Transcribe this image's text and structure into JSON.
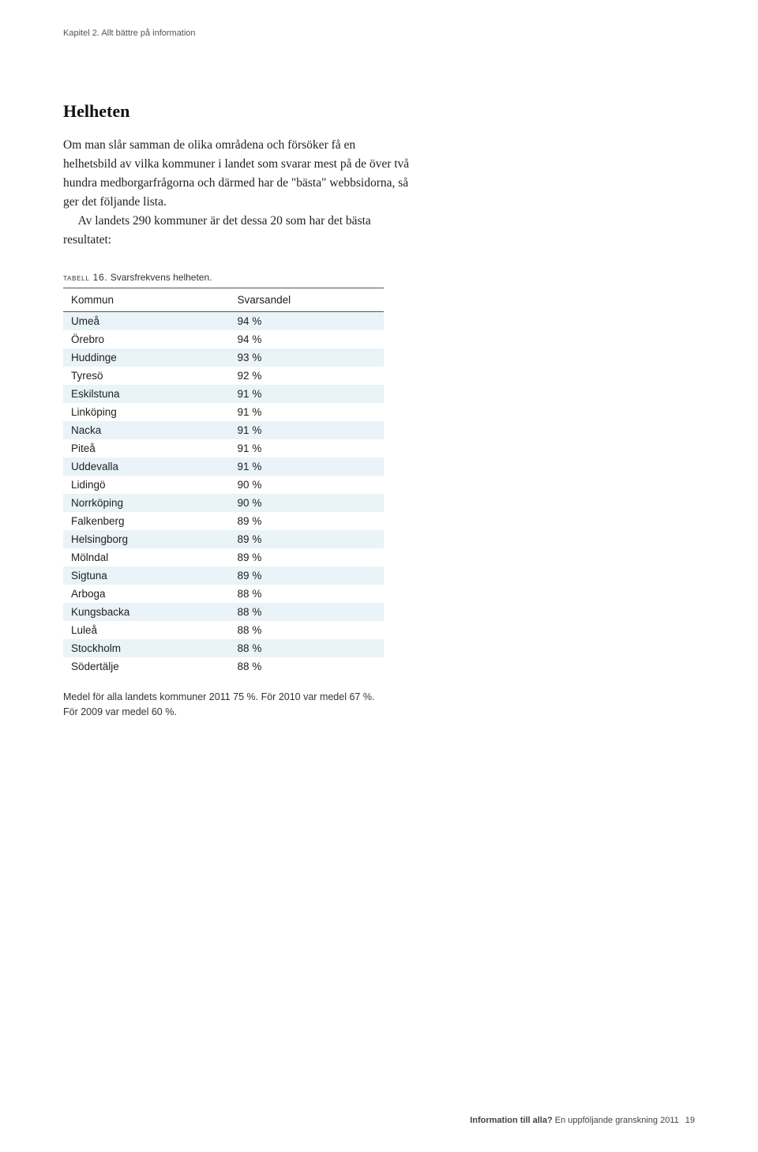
{
  "running_head": "Kapitel 2. Allt bättre på information",
  "section_title": "Helheten",
  "paragraphs": [
    "Om man slår samman de olika områdena och försöker få en helhetsbild av vilka kommuner i landet som svarar mest på de över två hundra medborgarfrågorna och därmed har de \"bästa\" webbsidorna, så ger det följande lista.",
    "Av landets 290 kommuner är det dessa 20 som har det bästa resultatet:"
  ],
  "table": {
    "caption_label": "TABELL 16.",
    "caption_text": " Svarsfrekvens helheten.",
    "columns": [
      "Kommun",
      "Svarsandel"
    ],
    "rows": [
      [
        "Umeå",
        "94 %"
      ],
      [
        "Örebro",
        "94 %"
      ],
      [
        "Huddinge",
        "93 %"
      ],
      [
        "Tyresö",
        "92 %"
      ],
      [
        "Eskilstuna",
        "91 %"
      ],
      [
        "Linköping",
        "91 %"
      ],
      [
        "Nacka",
        "91 %"
      ],
      [
        "Piteå",
        "91 %"
      ],
      [
        "Uddevalla",
        "91 %"
      ],
      [
        "Lidingö",
        "90 %"
      ],
      [
        "Norrköping",
        "90 %"
      ],
      [
        "Falkenberg",
        "89 %"
      ],
      [
        "Helsingborg",
        "89 %"
      ],
      [
        "Mölndal",
        "89 %"
      ],
      [
        "Sigtuna",
        "89 %"
      ],
      [
        "Arboga",
        "88 %"
      ],
      [
        "Kungsbacka",
        "88 %"
      ],
      [
        "Luleå",
        "88 %"
      ],
      [
        "Stockholm",
        "88 %"
      ],
      [
        "Södertälje",
        "88 %"
      ]
    ],
    "stripe_color": "#e9f3f8",
    "border_color": "#555555"
  },
  "table_footnote": "Medel för alla landets kommuner 2011 75 %. För 2010 var medel 67 %. För 2009 var medel 60 %.",
  "footer": {
    "bold": "Information till alla?",
    "rest": " En uppföljande granskning 2011",
    "page": "19"
  }
}
